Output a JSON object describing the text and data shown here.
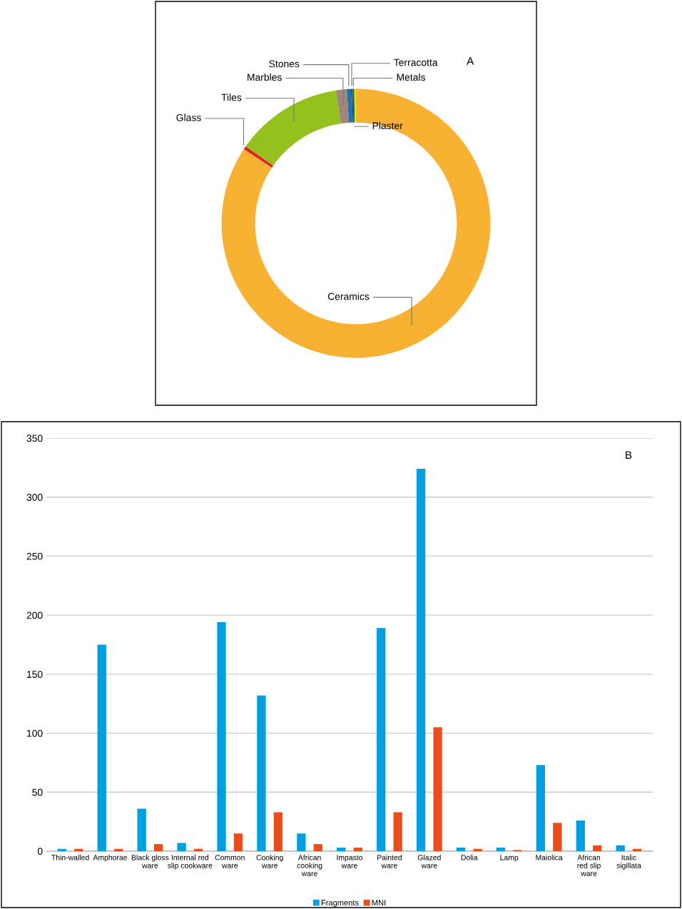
{
  "chart_data": [
    {
      "type": "donut",
      "title": "A",
      "categories": [
        "Ceramics",
        "Glass",
        "Tiles",
        "Marbles",
        "Stones",
        "Terracotta",
        "Metals",
        "Plaster"
      ],
      "values": [
        84.3,
        0.4,
        12.9,
        1.3,
        0.5,
        0.2,
        0.2,
        0.2
      ],
      "colors": [
        "#f8b133",
        "#e2231a",
        "#95c11f",
        "#a08677",
        "#1d71b8",
        "#17568c",
        "#1e6b3a",
        "#f5e000"
      ],
      "legend": false
    },
    {
      "type": "bar",
      "title": "B",
      "categories": [
        "Thin-walled",
        "Amphorae",
        "Black gloss\nware",
        "Internal red\nslip cookware",
        "Common\nware",
        "Cooking\nware",
        "African\ncooking\nware",
        "Impasto\nware",
        "Painted\nware",
        "Glazed\nware",
        "Dolia",
        "Lamp",
        "Maiolica",
        "African\nred slip\nware",
        "Italic\nsigillata"
      ],
      "series": [
        {
          "name": "Fragments",
          "color": "#009fe3",
          "values": [
            2,
            175,
            36,
            7,
            194,
            132,
            15,
            3,
            189,
            324,
            3,
            3,
            73,
            26,
            5
          ]
        },
        {
          "name": "MNI",
          "color": "#e94e1b",
          "values": [
            2,
            2,
            6,
            2,
            15,
            33,
            6,
            3,
            33,
            105,
            2,
            1,
            24,
            5,
            2
          ]
        }
      ],
      "ylim": [
        0,
        350
      ],
      "yticks": [
        0,
        50,
        100,
        150,
        200,
        250,
        300,
        350
      ],
      "grid": "y",
      "legend": "bottom"
    }
  ]
}
